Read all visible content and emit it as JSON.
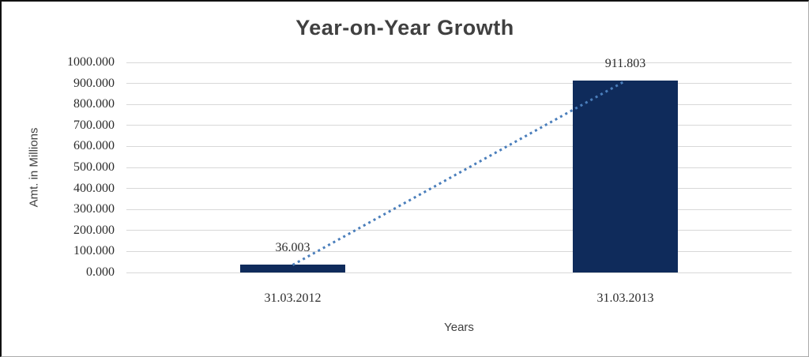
{
  "chart": {
    "title": "Year-on-Year Growth",
    "x_axis_title": "Years",
    "y_axis_title": "Amt. in Millions",
    "title_color": "#404040",
    "axis_title_color": "#404040",
    "tick_text_color": "#2b2b2b",
    "gridline_color": "#d8d8d8",
    "background_color": "#ffffff"
  },
  "chart_data": {
    "type": "bar",
    "title": "Year-on-Year Growth",
    "xlabel": "Years",
    "ylabel": "Amt. in Millions",
    "categories": [
      "31.03.2012",
      "31.03.2013"
    ],
    "series": [
      {
        "name": "Amount",
        "type": "bar",
        "values": [
          36.003,
          911.803
        ],
        "color": "#0f2b5b"
      },
      {
        "name": "Trend",
        "type": "line",
        "line_style": "dotted",
        "values": [
          36.003,
          911.803
        ],
        "color": "#4a7ebb"
      }
    ],
    "data_labels": [
      "36.003",
      "911.803"
    ],
    "y_ticks": [
      0,
      100,
      200,
      300,
      400,
      500,
      600,
      700,
      800,
      900,
      1000
    ],
    "y_tick_labels": [
      "0.000",
      "100.000",
      "200.000",
      "300.000",
      "400.000",
      "500.000",
      "600.000",
      "700.000",
      "800.000",
      "900.000",
      "1000.000"
    ],
    "ylim": [
      0,
      1000
    ],
    "grid": true,
    "legend": "none"
  }
}
